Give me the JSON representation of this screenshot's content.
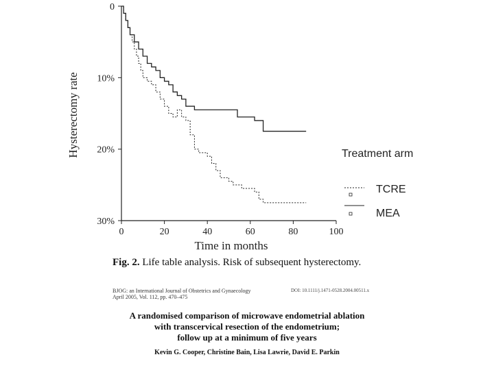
{
  "chart_data": {
    "type": "line",
    "xlabel": "Time in months",
    "ylabel": "Hysterectomy rate",
    "xlim": [
      0,
      100
    ],
    "ylim": [
      0,
      30
    ],
    "y_inverted": true,
    "x_ticks": [
      "0",
      "20",
      "40",
      "60",
      "80",
      "100"
    ],
    "y_ticks": [
      "0",
      "10%",
      "20%",
      "30%"
    ],
    "legend_title": "Treatment arm",
    "legend_position": "right",
    "series": [
      {
        "name": "TCRE",
        "style": "dashed",
        "x": [
          0,
          1,
          2,
          3,
          4,
          5,
          6,
          7,
          8,
          9,
          10,
          12,
          14,
          16,
          18,
          20,
          22,
          24,
          26,
          28,
          30,
          32,
          34,
          36,
          40,
          42,
          44,
          46,
          50,
          52,
          56,
          62,
          64,
          66,
          86
        ],
        "y": [
          0,
          1,
          2,
          3,
          4,
          5,
          6,
          7,
          8,
          9,
          10,
          10.5,
          11,
          12,
          13,
          14,
          15,
          15.5,
          14.5,
          15.5,
          16,
          18,
          20,
          20.5,
          21,
          22,
          23,
          24,
          24.5,
          25,
          25.5,
          26,
          27,
          27.5,
          27.5
        ]
      },
      {
        "name": "MEA",
        "style": "solid",
        "x": [
          0,
          1,
          2,
          3,
          4,
          6,
          8,
          10,
          12,
          14,
          16,
          18,
          20,
          22,
          24,
          26,
          28,
          30,
          34,
          40,
          50,
          54,
          62,
          66,
          86
        ],
        "y": [
          0,
          1,
          2,
          3,
          4,
          5,
          6,
          7,
          8,
          8.5,
          9,
          10,
          10.5,
          11,
          12,
          12.5,
          13,
          14,
          14.5,
          14.5,
          14.5,
          15.5,
          16,
          17.5,
          17.5
        ]
      }
    ]
  },
  "caption": {
    "prefix": "Fig. 2.",
    "text": " Life table analysis. Risk of subsequent hysterectomy."
  },
  "journal": {
    "line1": "BJOG: an International Journal of Obstetrics and Gynaecology",
    "line2": "April 2005, Vol. 112, pp. 470–475",
    "doi": "DOI: 10.1111/j.1471-0528.2004.00511.x"
  },
  "paper": {
    "title_line1": "A randomised comparison of microwave endometrial ablation",
    "title_line2": "with transcervical resection of the endometrium;",
    "title_line3": "follow up at a minimum of five years",
    "authors": "Kevin G. Cooper, Christine Bain, Lisa Lawrie, David E. Parkin"
  }
}
